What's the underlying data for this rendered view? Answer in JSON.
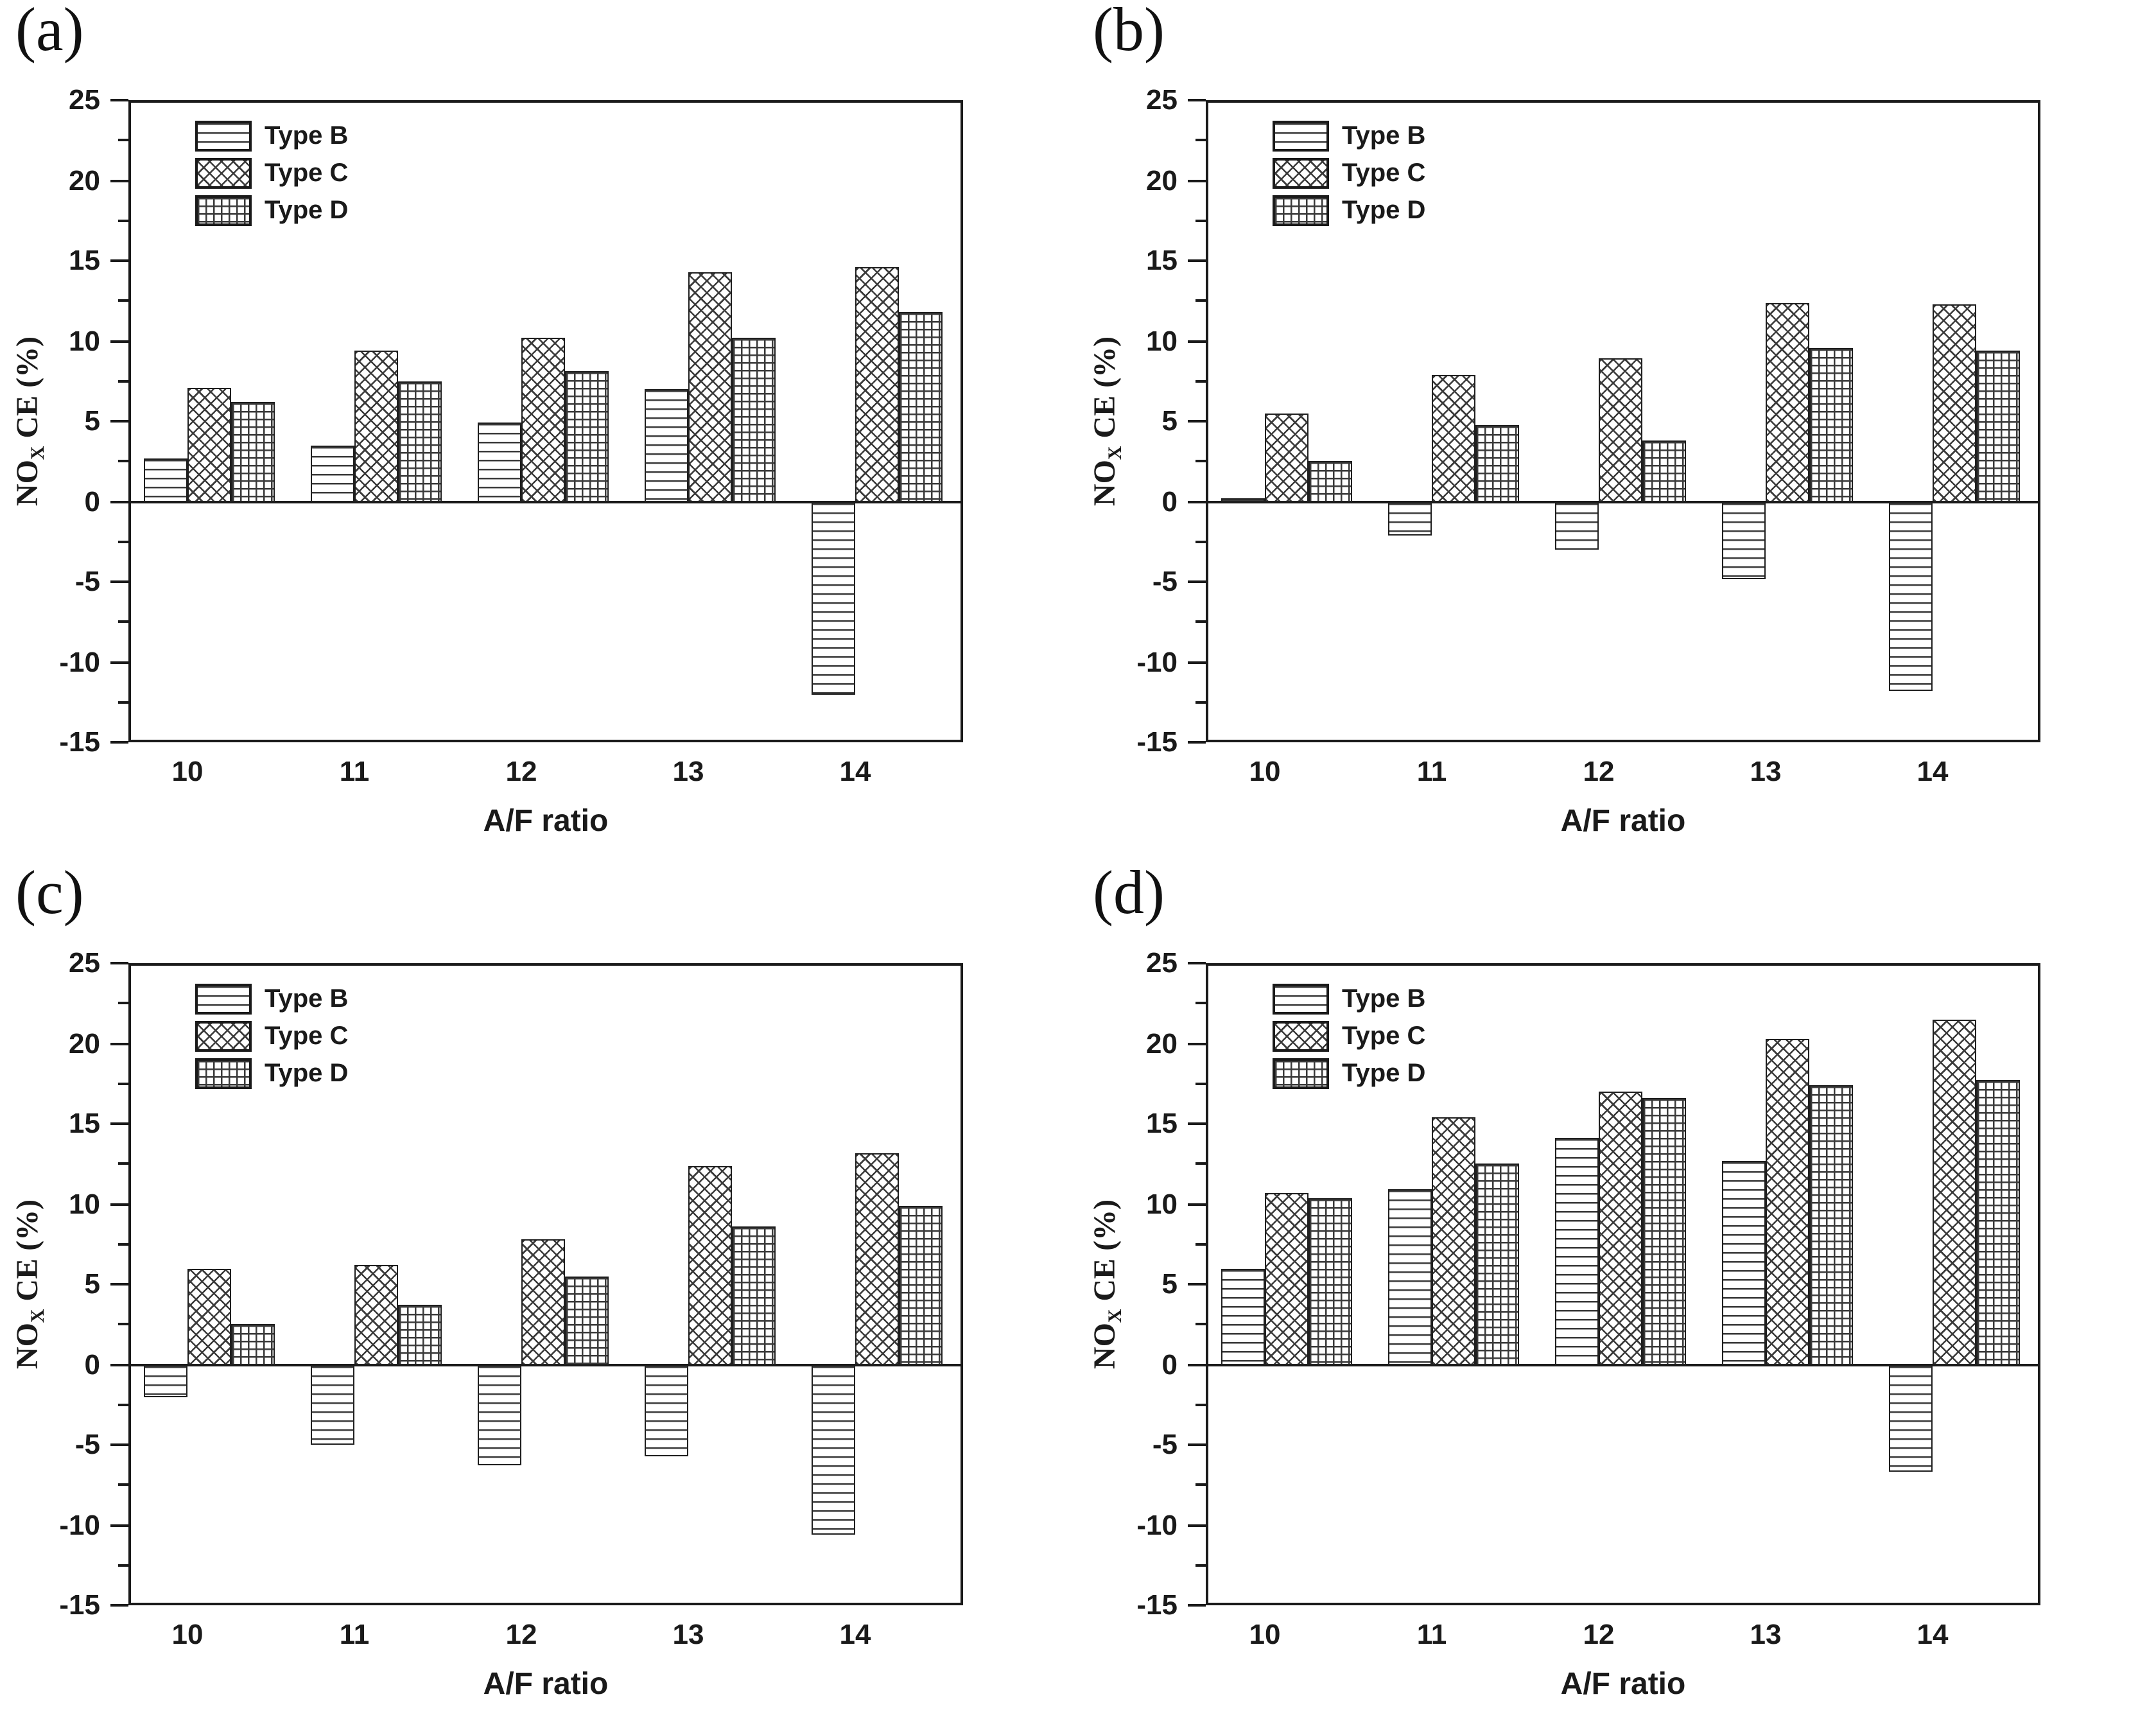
{
  "figure": {
    "background": "#ffffff",
    "ink_color": "#1a1a1a",
    "panel_letters": [
      "(a)",
      "(b)",
      "(c)",
      "(d)"
    ]
  },
  "chart_data": [
    {
      "panel": "(a)",
      "type": "bar",
      "title": "",
      "xlabel": "A/F ratio",
      "ylabel": {
        "pre": "NO",
        "sub": "X",
        "post": " CE (%)"
      },
      "ylim": [
        -15,
        25
      ],
      "ytick_major": 5,
      "ytick_minor": 2.5,
      "yticks_labels": [
        "25",
        "20",
        "15",
        "10",
        "5",
        "0",
        "-5",
        "-10",
        "-15"
      ],
      "grid": false,
      "legend_position": "top-left",
      "categories": [
        "10",
        "11",
        "12",
        "13",
        "14"
      ],
      "series": [
        {
          "name": "Type B",
          "hatch": "horizontal-lines",
          "values": [
            2.7,
            3.5,
            4.9,
            7.0,
            -12.0
          ]
        },
        {
          "name": "Type C",
          "hatch": "diagonal-crosshatch",
          "values": [
            7.1,
            9.4,
            10.2,
            14.3,
            14.6
          ]
        },
        {
          "name": "Type D",
          "hatch": "square-grid",
          "values": [
            6.2,
            7.5,
            8.1,
            10.2,
            11.8
          ]
        }
      ]
    },
    {
      "panel": "(b)",
      "type": "bar",
      "title": "",
      "xlabel": "A/F ratio",
      "ylabel": {
        "pre": "NO",
        "sub": "X",
        "post": " CE (%)"
      },
      "ylim": [
        -15,
        25
      ],
      "ytick_major": 5,
      "ytick_minor": 2.5,
      "yticks_labels": [
        "25",
        "20",
        "15",
        "10",
        "5",
        "0",
        "-5",
        "-10",
        "-15"
      ],
      "grid": false,
      "legend_position": "top-left",
      "categories": [
        "10",
        "11",
        "12",
        "13",
        "14"
      ],
      "series": [
        {
          "name": "Type B",
          "hatch": "horizontal-lines",
          "values": [
            0.2,
            -2.1,
            -3.0,
            -4.8,
            -11.8
          ]
        },
        {
          "name": "Type C",
          "hatch": "diagonal-crosshatch",
          "values": [
            5.5,
            7.9,
            8.9,
            12.4,
            12.3
          ]
        },
        {
          "name": "Type D",
          "hatch": "square-grid",
          "values": [
            2.5,
            4.8,
            3.8,
            9.6,
            9.4
          ]
        }
      ]
    },
    {
      "panel": "(c)",
      "type": "bar",
      "title": "",
      "xlabel": "A/F ratio",
      "ylabel": {
        "pre": "NO",
        "sub": "X",
        "post": " CE (%)"
      },
      "ylim": [
        -15,
        25
      ],
      "ytick_major": 5,
      "ytick_minor": 2.5,
      "yticks_labels": [
        "25",
        "20",
        "15",
        "10",
        "5",
        "0",
        "-5",
        "-10",
        "-15"
      ],
      "grid": false,
      "legend_position": "top-left",
      "categories": [
        "10",
        "11",
        "12",
        "13",
        "14"
      ],
      "series": [
        {
          "name": "Type B",
          "hatch": "horizontal-lines",
          "values": [
            -2.0,
            -5.0,
            -6.3,
            -5.7,
            -10.6
          ]
        },
        {
          "name": "Type C",
          "hatch": "diagonal-crosshatch",
          "values": [
            6.0,
            6.2,
            7.8,
            12.4,
            13.2
          ]
        },
        {
          "name": "Type D",
          "hatch": "square-grid",
          "values": [
            2.5,
            3.7,
            5.5,
            8.6,
            9.9
          ]
        }
      ]
    },
    {
      "panel": "(d)",
      "type": "bar",
      "title": "",
      "xlabel": "A/F ratio",
      "ylabel": {
        "pre": "NO",
        "sub": "X",
        "post": " CE (%)"
      },
      "ylim": [
        -15,
        25
      ],
      "ytick_major": 5,
      "ytick_minor": 2.5,
      "yticks_labels": [
        "25",
        "20",
        "15",
        "10",
        "5",
        "0",
        "-5",
        "-10",
        "-15"
      ],
      "grid": false,
      "legend_position": "top-left",
      "categories": [
        "10",
        "11",
        "12",
        "13",
        "14"
      ],
      "series": [
        {
          "name": "Type B",
          "hatch": "horizontal-lines",
          "values": [
            6.0,
            10.9,
            14.1,
            12.7,
            -6.7
          ]
        },
        {
          "name": "Type C",
          "hatch": "diagonal-crosshatch",
          "values": [
            10.7,
            15.4,
            17.0,
            20.3,
            21.5
          ]
        },
        {
          "name": "Type D",
          "hatch": "square-grid",
          "values": [
            10.4,
            12.5,
            16.6,
            17.4,
            17.7
          ]
        }
      ]
    }
  ]
}
